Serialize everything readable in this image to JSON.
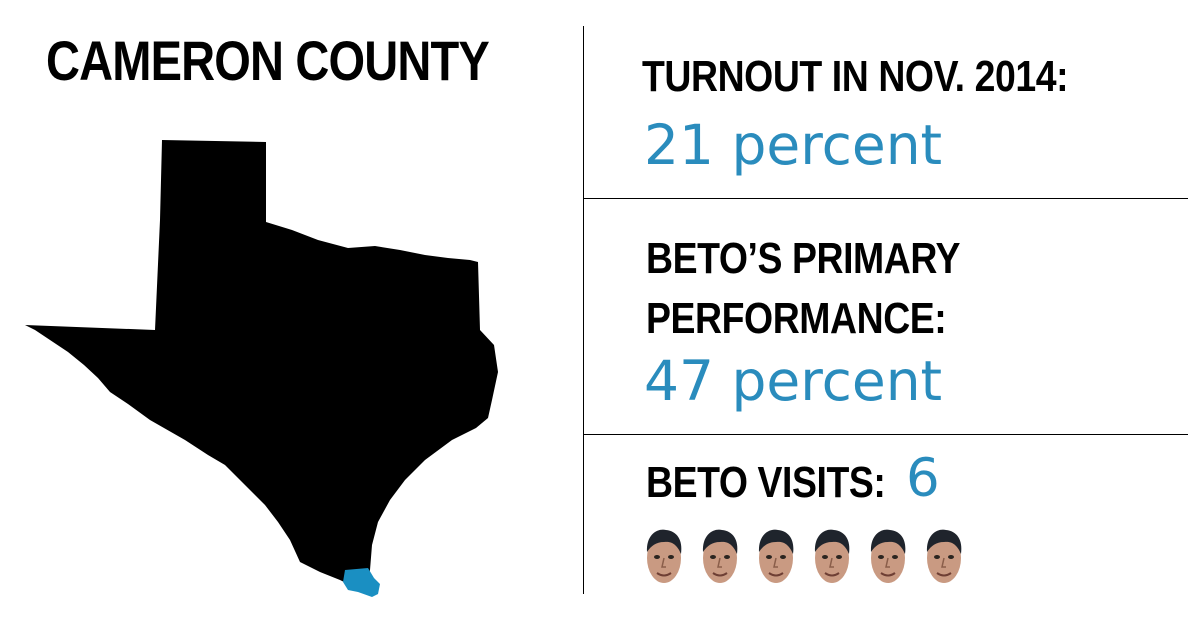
{
  "title": "CAMERON COUNTY",
  "stats": {
    "turnout": {
      "label": "TURNOUT IN NOV. 2014:",
      "value": "21 percent"
    },
    "primary": {
      "label_line1": "BETO’S PRIMARY",
      "label_line2": "PERFORMANCE:",
      "value": "47 percent"
    },
    "visits": {
      "label": "BETO VISITS:",
      "value": "6",
      "count": 6
    }
  },
  "map": {
    "state_color": "#000000",
    "highlight_color": "#1a8fc2"
  },
  "colors": {
    "accent": "#2a8cbd"
  }
}
